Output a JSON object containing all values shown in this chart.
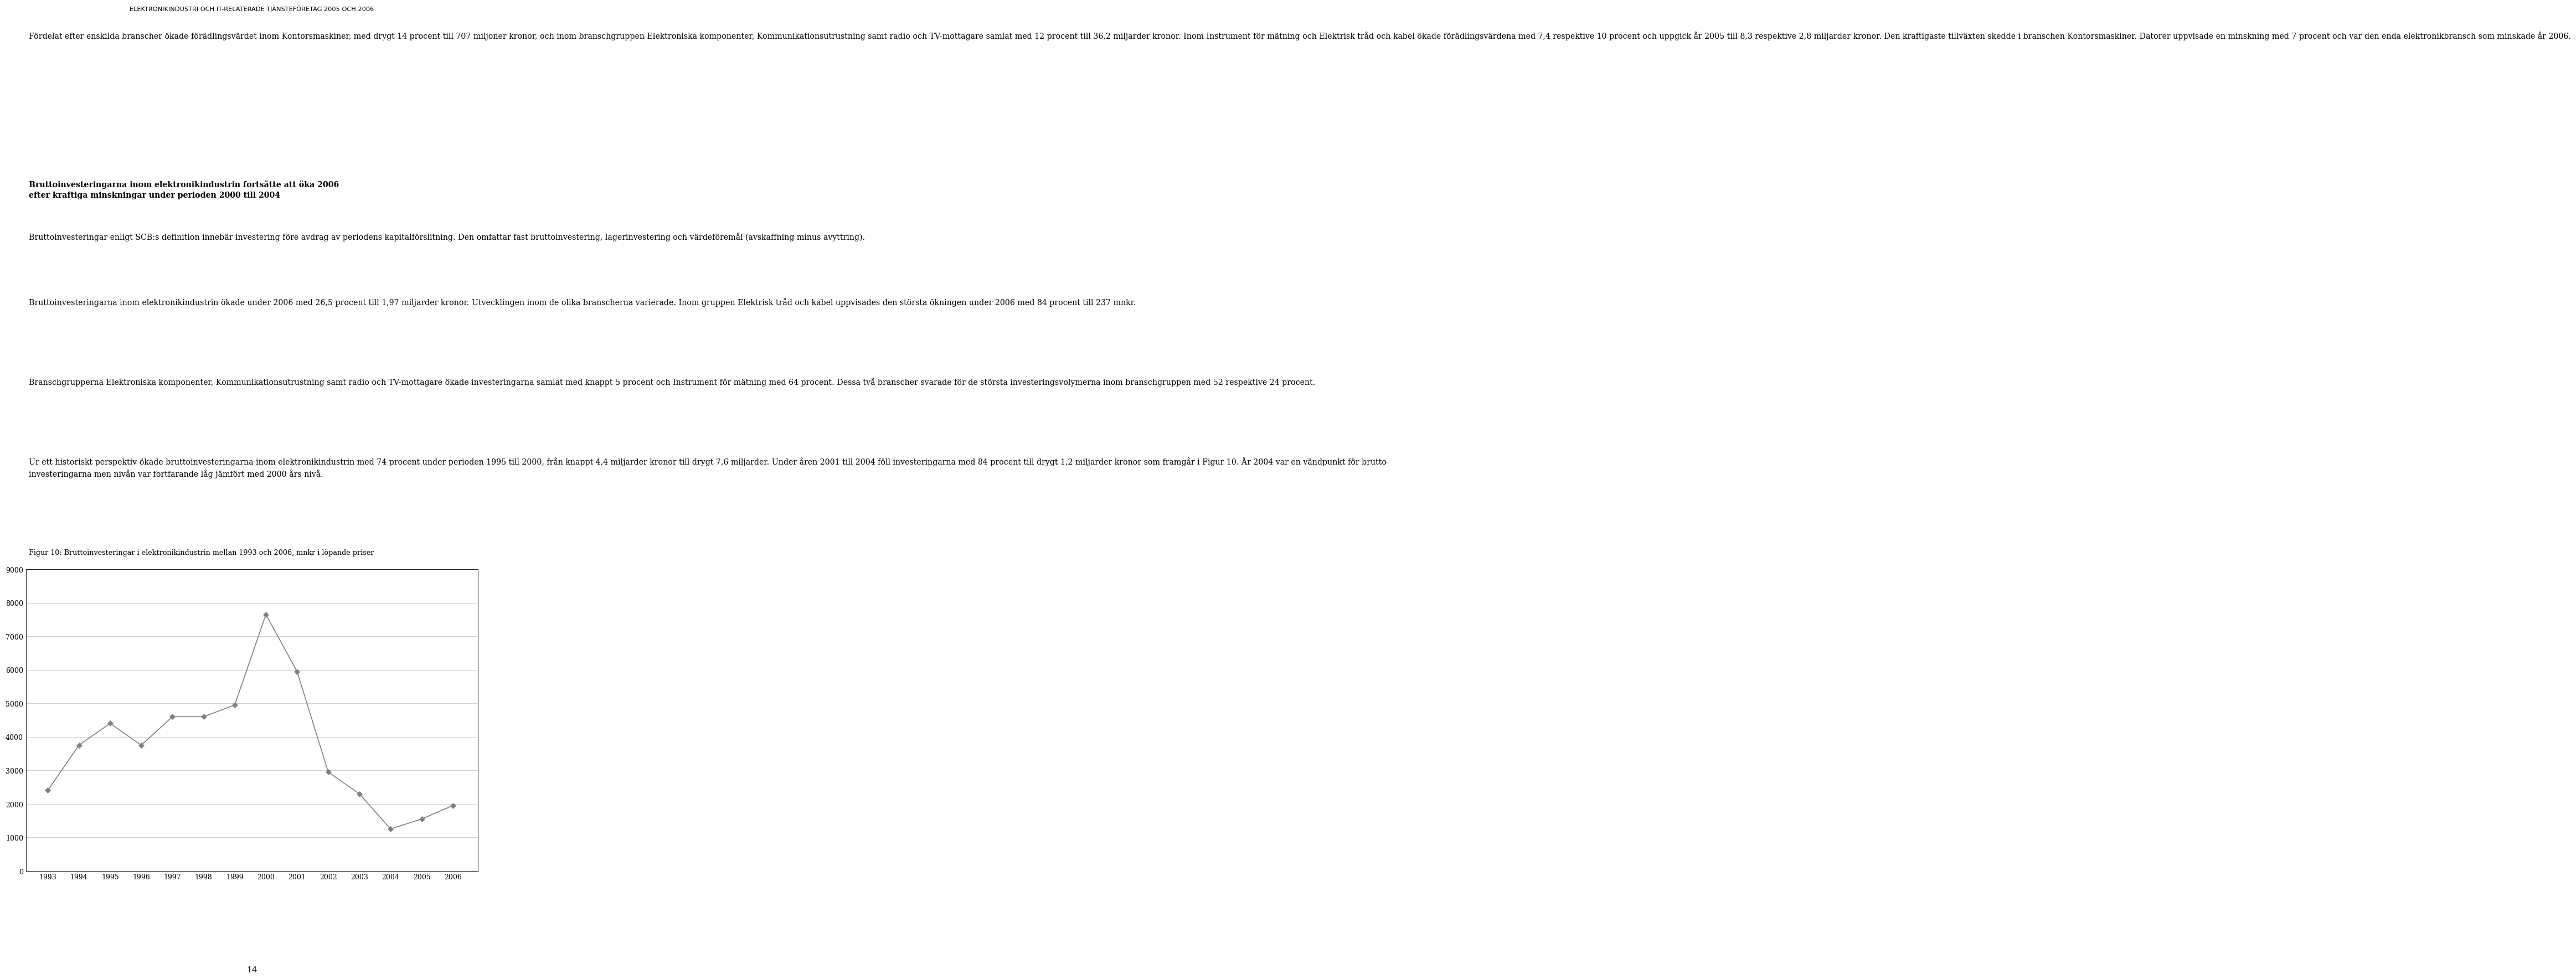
{
  "header_text": "ELEKTRONIKINDUSTRI OCH IT-RELATERADE TJÄNSTEFÖRETAG 2005 OCH 2006",
  "page_number": "14",
  "figure_caption": "Figur 10: Bruttoinvesteringar i elektronikindustrin mellan 1993 och 2006, mnkr i löpande priser",
  "chart_years": [
    1993,
    1994,
    1995,
    1996,
    1997,
    1998,
    1999,
    2000,
    2001,
    2002,
    2003,
    2004,
    2005,
    2006
  ],
  "chart_values": [
    2400,
    3750,
    4400,
    3750,
    4600,
    4600,
    4950,
    7650,
    5950,
    2950,
    2300,
    1250,
    1550,
    1950
  ],
  "ylim": [
    0,
    9000
  ],
  "yticks": [
    0,
    1000,
    2000,
    3000,
    4000,
    5000,
    6000,
    7000,
    8000,
    9000
  ],
  "line_color": "#808080",
  "marker_color": "#808080",
  "background_color": "#ffffff",
  "para1": "Fordelat efter enskilda branscher okade foradlingsvärdet inom Kontorsmaskiner, med drygt 14 procent till 707 miljoner kronor, och inom branschgruppen Elektroniska komponenter, Kommunikationsutrustning samt radio och TV-mottagare samlat med 12 procent till 36,2 miljarder kronor. Inom Instrument for matning och Elektrisk trad och kabel okade foradlingsvärdena med 7,4 respektive 10 procent och uppgick ar 2005 till 8,3 respektive 2,8 miljarder kronor. Den kraftigaste tillvaxten skedde i branschen Kontorsmaskiner. Datorer uppvisade en minskning med 7 procent och var den enda elektronikbransch som minskade ar 2006.",
  "bold_heading": "Bruttoinvesteringarna inom elektronikindustrin fortsatte att oka 2006\nefter kraftiga minskningar under perioden 2000 till 2004",
  "para_body1": "Bruttoinvesteringar enligt SCB:s definition innebar investering fore avdrag av periodens kapitalforslitning. Den omfattar fast bruttoinvestering, lagerinvestering och vardeforemal (avskaffning minus avyttring).",
  "para_body2": "Bruttoinvesteringarna inom elektronikindustrin okade under 2006 med 26,5 procent till 1,97 miljarder kronor. Utvecklingen inom de olika branscherna varierade. Inom gruppen Elektrisk trad och kabel uppvisades den storsta okningen under 2006 med 84 procent till 237 mnkr.",
  "para_body3": "Branschgrupperna Elektroniska komponenter, Kommunikationsutrustning samt radio och TV-mottagare okade investeringarna samlat med knappt 5 procent och Instrument for matning med 64 procent. Dessa tva branscher svarade for de storsta investeringsvolymerna inom branschgruppen med 52 respektive 24 procent.",
  "para_body4": "Ur ett historiskt perspektiv okade bruttoinvesteringarna inom elektronikindustrin med 74 procent under perioden 1995 till 2000, fran knappt 4,4 miljarder kronor till drygt 7,6 miljarder. Under aren 2001 till 2004 foll investeringarna med 84 procent till drygt 1,2 miljarder kronor som framgar i Figur 10. Ar 2004 var en vandpunkt for bruttoinvesteringarna men nivan var fortfarande lag jamfort med 2000 ars niva."
}
